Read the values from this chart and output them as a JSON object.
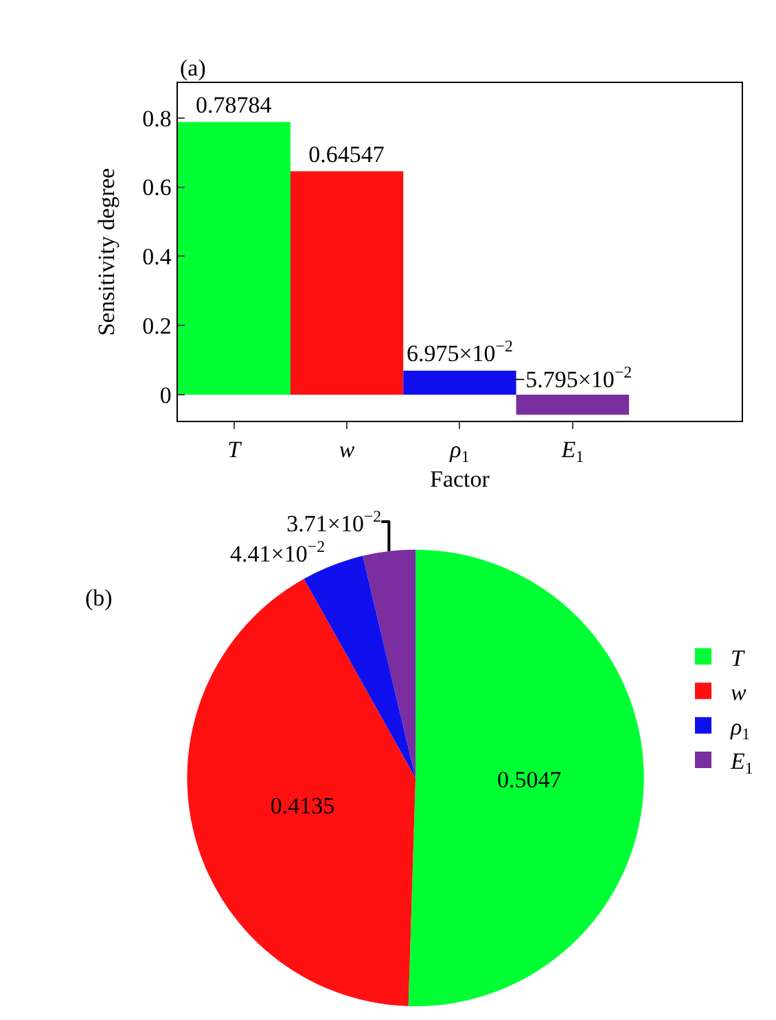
{
  "chart_data": [
    {
      "type": "bar",
      "xlabel": "Factor",
      "ylabel": "Sensitivity degree",
      "annotations": [
        "(a)"
      ],
      "categories": [
        "T",
        "w",
        "ρ$_{1}$",
        "E$_{1}$"
      ],
      "values": [
        0.78784,
        0.64547,
        0.06975,
        -0.05795
      ],
      "value_labels": [
        "0.78784",
        "0.64547",
        "6.975×10$^{−2}$",
        "−5.795×10$^{−2}$"
      ],
      "colors": [
        "#00ff33",
        "#ff1111",
        "#1010ee",
        "#7a2ea0"
      ],
      "ylim": [
        -0.075,
        0.9
      ],
      "yticks": [
        0,
        0.2,
        0.4,
        0.6,
        0.8
      ]
    },
    {
      "type": "pie",
      "annotations": [
        "(b)"
      ],
      "categories": [
        "T",
        "w",
        "ρ$_{1}$",
        "E$_{1}$"
      ],
      "values": [
        0.5047,
        0.4135,
        0.0441,
        0.0371
      ],
      "value_labels": [
        "0.5047",
        "0.4135",
        "4.41×10$^{−2}$",
        "3.71×10$^{−2}$"
      ],
      "colors": [
        "#00ff33",
        "#ff1111",
        "#1010ee",
        "#7a2ea0"
      ],
      "legend": "right"
    }
  ]
}
